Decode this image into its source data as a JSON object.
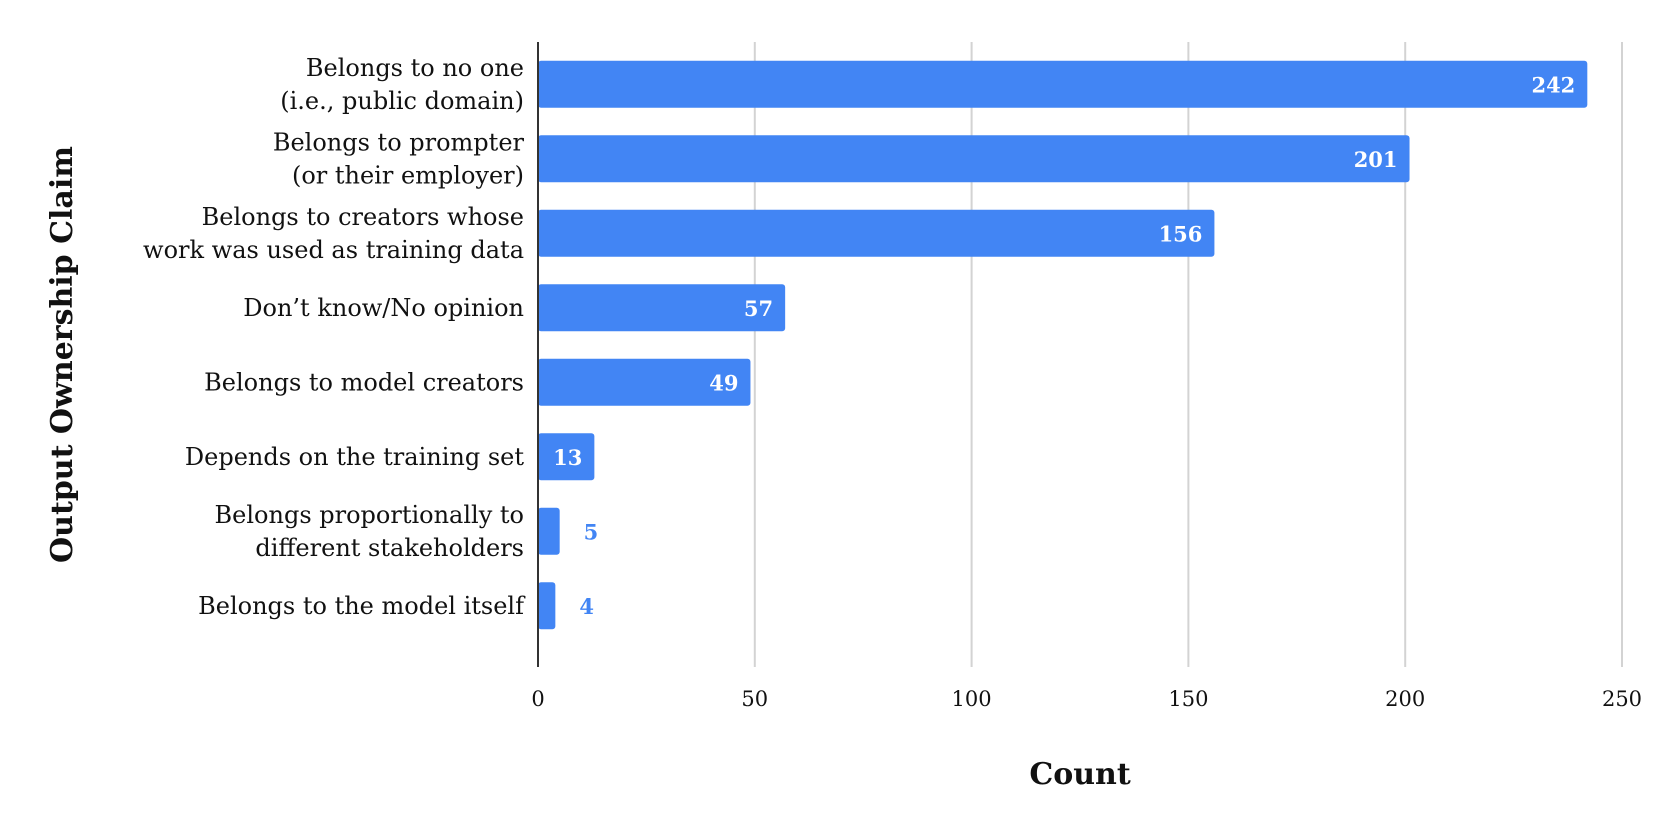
{
  "chart_data": {
    "type": "bar",
    "orientation": "horizontal",
    "categories": [
      [
        "Belongs to no one",
        "(i.e., public domain)"
      ],
      [
        "Belongs to prompter",
        "(or their employer)"
      ],
      [
        "Belongs to creators whose",
        "work was used as training data"
      ],
      [
        "Don’t know/No opinion"
      ],
      [
        "Belongs to model creators"
      ],
      [
        "Depends on the training set"
      ],
      [
        "Belongs proportionally to",
        "different stakeholders"
      ],
      [
        "Belongs to the model itself"
      ]
    ],
    "values": [
      242,
      201,
      156,
      57,
      49,
      13,
      5,
      4
    ],
    "xlabel": "Count",
    "ylabel": "Output Ownership Claim",
    "xlim": [
      0,
      250
    ],
    "xticks": [
      0,
      50,
      100,
      150,
      200,
      250
    ],
    "grid": "vertical",
    "bar_color": "#4285f4",
    "inside_label_color": "#ffffff",
    "outside_label_color": "#4285f4",
    "gridline_color": "#d3d3d3"
  }
}
